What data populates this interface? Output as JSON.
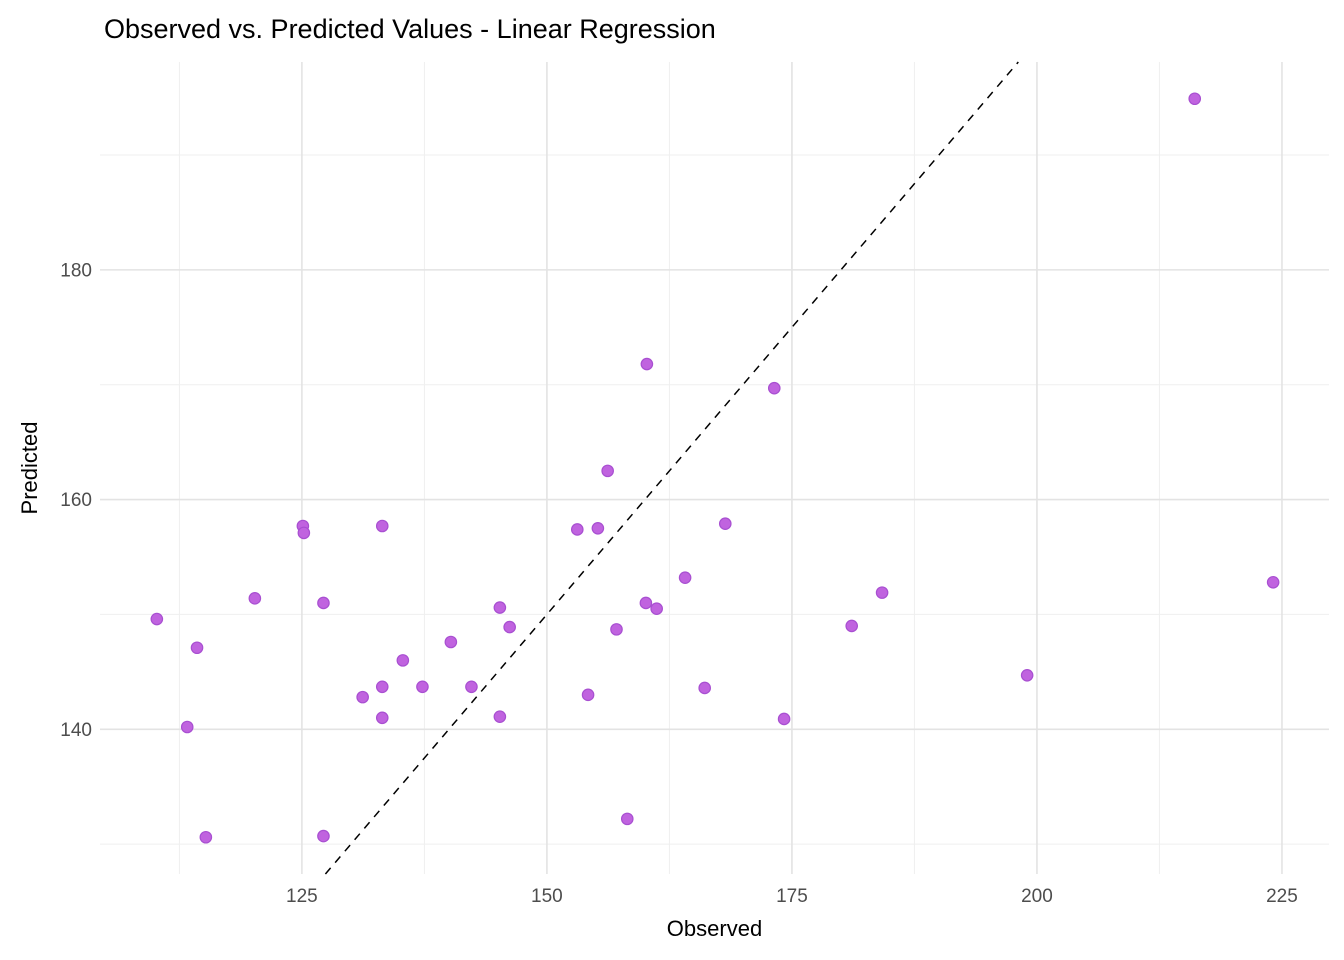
{
  "chart_data": {
    "type": "scatter",
    "title": "Observed vs. Predicted Values - Linear Regression",
    "xlabel": "Observed",
    "ylabel": "Predicted",
    "xlim": [
      104.4,
      229.8
    ],
    "ylim": [
      127.4,
      198.1
    ],
    "x_major_ticks": [
      125,
      150,
      175,
      200,
      225
    ],
    "x_minor_ticks": [
      112.5,
      137.5,
      162.5,
      187.5,
      212.5
    ],
    "y_major_ticks": [
      140,
      160,
      180
    ],
    "y_minor_ticks": [
      130,
      150,
      170,
      190
    ],
    "grid": true,
    "legend_position": "none",
    "background_color": "#ffffff",
    "major_grid_color": "#e3e3e3",
    "minor_grid_color": "#efefef",
    "tick_label_color": "#4d4d4d",
    "point_fill_color": "#c063df",
    "point_stroke_color": "#a84fd1",
    "identity_line": {
      "equation": "y = x",
      "style": "dashed",
      "color": "#000000"
    },
    "points": [
      {
        "observed": 110.2,
        "predicted": 149.6
      },
      {
        "observed": 113.3,
        "predicted": 140.2
      },
      {
        "observed": 114.3,
        "predicted": 147.1
      },
      {
        "observed": 115.2,
        "predicted": 130.6
      },
      {
        "observed": 120.2,
        "predicted": 151.4
      },
      {
        "observed": 125.1,
        "predicted": 157.7
      },
      {
        "observed": 125.2,
        "predicted": 157.1
      },
      {
        "observed": 127.2,
        "predicted": 151.0
      },
      {
        "observed": 127.2,
        "predicted": 130.7
      },
      {
        "observed": 131.2,
        "predicted": 142.8
      },
      {
        "observed": 133.2,
        "predicted": 157.7
      },
      {
        "observed": 133.2,
        "predicted": 143.7
      },
      {
        "observed": 133.2,
        "predicted": 141.0
      },
      {
        "observed": 135.3,
        "predicted": 146.0
      },
      {
        "observed": 137.3,
        "predicted": 143.7
      },
      {
        "observed": 140.2,
        "predicted": 147.6
      },
      {
        "observed": 142.3,
        "predicted": 143.7
      },
      {
        "observed": 145.2,
        "predicted": 150.6
      },
      {
        "observed": 145.2,
        "predicted": 141.1
      },
      {
        "observed": 146.2,
        "predicted": 148.9
      },
      {
        "observed": 153.1,
        "predicted": 157.4
      },
      {
        "observed": 154.2,
        "predicted": 143.0
      },
      {
        "observed": 155.2,
        "predicted": 157.5
      },
      {
        "observed": 156.2,
        "predicted": 162.5
      },
      {
        "observed": 157.1,
        "predicted": 148.7
      },
      {
        "observed": 158.2,
        "predicted": 132.2
      },
      {
        "observed": 160.1,
        "predicted": 151.0
      },
      {
        "observed": 160.2,
        "predicted": 171.8
      },
      {
        "observed": 161.2,
        "predicted": 150.5
      },
      {
        "observed": 164.1,
        "predicted": 153.2
      },
      {
        "observed": 166.1,
        "predicted": 143.6
      },
      {
        "observed": 168.2,
        "predicted": 157.9
      },
      {
        "observed": 173.2,
        "predicted": 169.7
      },
      {
        "observed": 174.2,
        "predicted": 140.9
      },
      {
        "observed": 181.1,
        "predicted": 149.0
      },
      {
        "observed": 184.2,
        "predicted": 151.9
      },
      {
        "observed": 199.0,
        "predicted": 144.7
      },
      {
        "observed": 216.1,
        "predicted": 194.9
      },
      {
        "observed": 224.1,
        "predicted": 152.8
      }
    ]
  }
}
